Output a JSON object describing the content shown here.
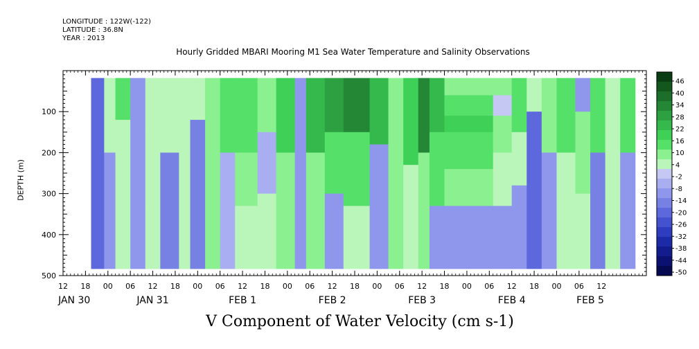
{
  "header": {
    "longitude": "LONGITUDE : 122W(-122)",
    "latitude": "LATITUDE : 36.8N",
    "year": "YEAR : 2013"
  },
  "chart_data": {
    "type": "heatmap",
    "title": "Hourly Gridded MBARI Mooring M1 Sea Water Temperature and Salinity Observations",
    "bottom_title": "V Component of Water Velocity (cm s-1)",
    "ylabel": "DEPTH (m)",
    "y_axis": {
      "range": [
        0,
        500
      ],
      "reversed": true,
      "ticks": [
        100,
        200,
        300,
        400,
        500
      ],
      "tick_labels": [
        "100",
        "200",
        "300",
        "400",
        "500"
      ]
    },
    "x_axis": {
      "range_hours": [
        0,
        156
      ],
      "hour_ticks": [
        {
          "h": 0,
          "label": "12"
        },
        {
          "h": 6,
          "label": "18"
        },
        {
          "h": 12,
          "label": "00"
        },
        {
          "h": 18,
          "label": "06"
        },
        {
          "h": 24,
          "label": "12"
        },
        {
          "h": 30,
          "label": "18"
        },
        {
          "h": 36,
          "label": "00"
        },
        {
          "h": 42,
          "label": "06"
        },
        {
          "h": 48,
          "label": "12"
        },
        {
          "h": 54,
          "label": "18"
        },
        {
          "h": 60,
          "label": "00"
        },
        {
          "h": 66,
          "label": "06"
        },
        {
          "h": 72,
          "label": "12"
        },
        {
          "h": 78,
          "label": "18"
        },
        {
          "h": 84,
          "label": "00"
        },
        {
          "h": 90,
          "label": "06"
        },
        {
          "h": 96,
          "label": "12"
        },
        {
          "h": 102,
          "label": "18"
        },
        {
          "h": 108,
          "label": "00"
        },
        {
          "h": 114,
          "label": "06"
        },
        {
          "h": 120,
          "label": "12"
        },
        {
          "h": 126,
          "label": "18"
        },
        {
          "h": 132,
          "label": "00"
        },
        {
          "h": 138,
          "label": "06"
        },
        {
          "h": 144,
          "label": "12"
        }
      ],
      "day_labels": [
        {
          "h": 3,
          "label": "JAN 30"
        },
        {
          "h": 24,
          "label": "JAN 31"
        },
        {
          "h": 48,
          "label": "FEB  1"
        },
        {
          "h": 72,
          "label": "FEB  2"
        },
        {
          "h": 96,
          "label": "FEB  3"
        },
        {
          "h": 120,
          "label": "FEB  4"
        },
        {
          "h": 141,
          "label": "FEB  5"
        }
      ]
    },
    "data_extent": {
      "hour_start": 7.5,
      "hour_end": 153,
      "depth_top": 18,
      "depth_bottom": 483
    },
    "colorbar": {
      "labels": [
        "46",
        "40",
        "34",
        "28",
        "22",
        "16",
        "10",
        "4",
        "-2",
        "-8",
        "-14",
        "-20",
        "-26",
        "-32",
        "-38",
        "-44",
        "-50"
      ],
      "colors": [
        "#0a3d14",
        "#13571f",
        "#1c6e2a",
        "#248736",
        "#2da141",
        "#35b94c",
        "#3fd057",
        "#55e06a",
        "#8af090",
        "#baf6b9",
        "#c4c8f2",
        "#a8aef0",
        "#8f97ec",
        "#7781e4",
        "#5c68dc",
        "#4452d0",
        "#2e3cc0",
        "#1d2aa8",
        "#121c8c",
        "#0a1170",
        "#05094f"
      ]
    },
    "columns": [
      {
        "h0": 7.5,
        "h1": 11,
        "bands": [
          [
            18,
            483,
            -20
          ]
        ]
      },
      {
        "h0": 11,
        "h1": 14,
        "bands": [
          [
            18,
            200,
            2
          ],
          [
            200,
            483,
            -8
          ]
        ]
      },
      {
        "h0": 14,
        "h1": 18,
        "bands": [
          [
            18,
            120,
            12
          ],
          [
            120,
            260,
            6
          ],
          [
            260,
            483,
            4
          ]
        ]
      },
      {
        "h0": 18,
        "h1": 22,
        "bands": [
          [
            18,
            483,
            -8
          ]
        ]
      },
      {
        "h0": 22,
        "h1": 26,
        "bands": [
          [
            18,
            150,
            6
          ],
          [
            150,
            330,
            4
          ],
          [
            330,
            483,
            2
          ]
        ]
      },
      {
        "h0": 26,
        "h1": 31,
        "bands": [
          [
            18,
            200,
            4
          ],
          [
            200,
            483,
            -14
          ]
        ]
      },
      {
        "h0": 31,
        "h1": 34,
        "bands": [
          [
            18,
            483,
            6
          ]
        ]
      },
      {
        "h0": 34,
        "h1": 38,
        "bands": [
          [
            18,
            120,
            4
          ],
          [
            120,
            483,
            -14
          ]
        ]
      },
      {
        "h0": 38,
        "h1": 42,
        "bands": [
          [
            18,
            483,
            8
          ]
        ]
      },
      {
        "h0": 42,
        "h1": 46,
        "bands": [
          [
            18,
            200,
            12
          ],
          [
            200,
            483,
            -4
          ]
        ]
      },
      {
        "h0": 46,
        "h1": 52,
        "bands": [
          [
            18,
            200,
            16
          ],
          [
            200,
            330,
            8
          ],
          [
            330,
            483,
            2
          ]
        ]
      },
      {
        "h0": 52,
        "h1": 57,
        "bands": [
          [
            18,
            150,
            10
          ],
          [
            150,
            300,
            -4
          ],
          [
            300,
            483,
            6
          ]
        ]
      },
      {
        "h0": 57,
        "h1": 62,
        "bands": [
          [
            18,
            200,
            18
          ],
          [
            200,
            483,
            8
          ]
        ]
      },
      {
        "h0": 62,
        "h1": 65,
        "bands": [
          [
            18,
            483,
            -8
          ]
        ]
      },
      {
        "h0": 65,
        "h1": 70,
        "bands": [
          [
            18,
            200,
            22
          ],
          [
            200,
            483,
            8
          ]
        ]
      },
      {
        "h0": 70,
        "h1": 75,
        "bands": [
          [
            18,
            150,
            28
          ],
          [
            150,
            300,
            16
          ],
          [
            300,
            483,
            -8
          ]
        ]
      },
      {
        "h0": 75,
        "h1": 82,
        "bands": [
          [
            18,
            150,
            34
          ],
          [
            150,
            330,
            16
          ],
          [
            330,
            483,
            6
          ]
        ]
      },
      {
        "h0": 82,
        "h1": 87,
        "bands": [
          [
            18,
            180,
            22
          ],
          [
            180,
            483,
            -8
          ]
        ]
      },
      {
        "h0": 87,
        "h1": 91,
        "bands": [
          [
            18,
            483,
            10
          ]
        ]
      },
      {
        "h0": 91,
        "h1": 95,
        "bands": [
          [
            18,
            230,
            18
          ],
          [
            230,
            483,
            2
          ]
        ]
      },
      {
        "h0": 95,
        "h1": 98,
        "bands": [
          [
            18,
            200,
            34
          ],
          [
            200,
            483,
            10
          ]
        ]
      },
      {
        "h0": 98,
        "h1": 102,
        "bands": [
          [
            18,
            150,
            22
          ],
          [
            150,
            330,
            14
          ],
          [
            330,
            483,
            -8
          ]
        ]
      },
      {
        "h0": 102,
        "h1": 115,
        "bands": [
          [
            18,
            60,
            10
          ],
          [
            60,
            110,
            12
          ],
          [
            110,
            150,
            18
          ],
          [
            150,
            240,
            12
          ],
          [
            240,
            330,
            8
          ],
          [
            330,
            483,
            -8
          ]
        ]
      },
      {
        "h0": 115,
        "h1": 120,
        "bands": [
          [
            18,
            60,
            10
          ],
          [
            60,
            110,
            -2
          ],
          [
            110,
            200,
            10
          ],
          [
            200,
            330,
            6
          ],
          [
            330,
            483,
            -8
          ]
        ]
      },
      {
        "h0": 120,
        "h1": 124,
        "bands": [
          [
            18,
            150,
            12
          ],
          [
            150,
            280,
            4
          ],
          [
            280,
            483,
            -8
          ]
        ]
      },
      {
        "h0": 124,
        "h1": 128,
        "bands": [
          [
            18,
            100,
            4
          ],
          [
            100,
            483,
            -20
          ]
        ]
      },
      {
        "h0": 128,
        "h1": 132,
        "bands": [
          [
            18,
            200,
            10
          ],
          [
            200,
            483,
            -8
          ]
        ]
      },
      {
        "h0": 132,
        "h1": 137,
        "bands": [
          [
            18,
            200,
            16
          ],
          [
            200,
            483,
            6
          ]
        ]
      },
      {
        "h0": 137,
        "h1": 141,
        "bands": [
          [
            18,
            100,
            -8
          ],
          [
            100,
            300,
            10
          ],
          [
            300,
            483,
            2
          ]
        ]
      },
      {
        "h0": 141,
        "h1": 145,
        "bands": [
          [
            18,
            200,
            12
          ],
          [
            200,
            483,
            -14
          ]
        ]
      },
      {
        "h0": 145,
        "h1": 149,
        "bands": [
          [
            18,
            150,
            6
          ],
          [
            150,
            483,
            4
          ]
        ]
      },
      {
        "h0": 149,
        "h1": 153,
        "bands": [
          [
            18,
            200,
            12
          ],
          [
            200,
            483,
            -8
          ]
        ]
      }
    ]
  }
}
